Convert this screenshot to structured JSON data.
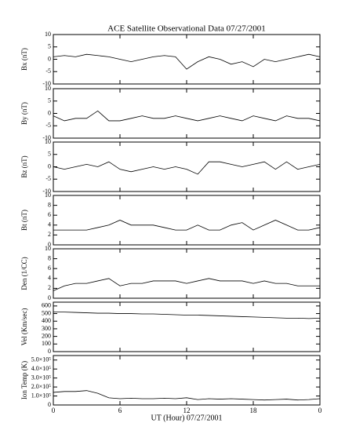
{
  "chart_data": [
    {
      "type": "line",
      "title": "ACE Satellite Observational Data  07/27/2001",
      "ylabel": "Bx (nT)",
      "color": "#000000",
      "ylim": [
        -10,
        10
      ],
      "yticks": [
        -10,
        -5,
        0,
        5,
        10
      ],
      "x": [
        0,
        1,
        2,
        3,
        4,
        5,
        6,
        7,
        8,
        9,
        10,
        11,
        12,
        13,
        14,
        15,
        16,
        17,
        18,
        19,
        20,
        21,
        22,
        23,
        24
      ],
      "values": [
        1,
        1.5,
        1,
        2,
        1.5,
        1,
        0,
        -1,
        0,
        1,
        1.5,
        1,
        -4,
        -1,
        1,
        0,
        -2,
        -1,
        -3,
        0,
        -1,
        0,
        1,
        2,
        1
      ]
    },
    {
      "type": "line",
      "ylabel": "By (nT)",
      "color": "#000000",
      "ylim": [
        -10,
        10
      ],
      "yticks": [
        -10,
        -5,
        0,
        5,
        10
      ],
      "x": [
        0,
        1,
        2,
        3,
        4,
        5,
        6,
        7,
        8,
        9,
        10,
        11,
        12,
        13,
        14,
        15,
        16,
        17,
        18,
        19,
        20,
        21,
        22,
        23,
        24
      ],
      "values": [
        -1,
        -3,
        -2,
        -2,
        1,
        -3,
        -3,
        -2,
        -1,
        -2,
        -2,
        -1,
        -2,
        -3,
        -2,
        -1,
        -2,
        -3,
        -1,
        -2,
        -3,
        -1,
        -2,
        -2,
        -3
      ]
    },
    {
      "type": "line",
      "ylabel": "Bz (nT)",
      "color": "#000000",
      "ylim": [
        -10,
        10
      ],
      "yticks": [
        -10,
        -5,
        0,
        5,
        10
      ],
      "x": [
        0,
        1,
        2,
        3,
        4,
        5,
        6,
        7,
        8,
        9,
        10,
        11,
        12,
        13,
        14,
        15,
        16,
        17,
        18,
        19,
        20,
        21,
        22,
        23,
        24
      ],
      "values": [
        0,
        -1,
        0,
        1,
        0,
        2,
        -1,
        -2,
        -1,
        0,
        -1,
        0,
        -1,
        -3,
        2,
        2,
        1,
        0,
        1,
        2,
        -1,
        2,
        -1,
        0,
        1
      ]
    },
    {
      "type": "line",
      "ylabel": "Bt (nT)",
      "color": "#000000",
      "ylim": [
        0,
        10
      ],
      "yticks": [
        0,
        2,
        4,
        6,
        8,
        10
      ],
      "x": [
        0,
        1,
        2,
        3,
        4,
        5,
        6,
        7,
        8,
        9,
        10,
        11,
        12,
        13,
        14,
        15,
        16,
        17,
        18,
        19,
        20,
        21,
        22,
        23,
        24
      ],
      "values": [
        3,
        3,
        3,
        3,
        3.5,
        4,
        5,
        4,
        4,
        4,
        3.5,
        3,
        3,
        4,
        3,
        3,
        4,
        4.5,
        3,
        4,
        5,
        4,
        3,
        3,
        3.5
      ]
    },
    {
      "type": "line",
      "ylabel": "Den (1/CC)",
      "color": "#000000",
      "ylim": [
        0,
        10
      ],
      "yticks": [
        0,
        2,
        4,
        6,
        8,
        10
      ],
      "x": [
        0,
        1,
        2,
        3,
        4,
        5,
        6,
        7,
        8,
        9,
        10,
        11,
        12,
        13,
        14,
        15,
        16,
        17,
        18,
        19,
        20,
        21,
        22,
        23,
        24
      ],
      "values": [
        1.5,
        2.5,
        3,
        3,
        3.5,
        4,
        2.5,
        3,
        3,
        3.5,
        3.5,
        3.5,
        3,
        3.5,
        4,
        3.5,
        3.5,
        3.5,
        3,
        3.5,
        3,
        3,
        2.5,
        2.5,
        2.5
      ]
    },
    {
      "type": "line",
      "ylabel": "Vel (Km/sec)",
      "color": "#000000",
      "ylim": [
        0,
        650
      ],
      "yticks": [
        0,
        100,
        200,
        300,
        400,
        500,
        600
      ],
      "x": [
        0,
        1,
        2,
        3,
        4,
        5,
        6,
        7,
        8,
        9,
        10,
        11,
        12,
        13,
        14,
        15,
        16,
        17,
        18,
        19,
        20,
        21,
        22,
        23,
        24
      ],
      "values": [
        520,
        520,
        515,
        510,
        505,
        505,
        500,
        500,
        495,
        495,
        490,
        485,
        480,
        480,
        475,
        470,
        465,
        460,
        455,
        450,
        445,
        440,
        440,
        435,
        440
      ]
    },
    {
      "type": "line",
      "ylabel": "Ion Temp (K)",
      "xlabel": "UT (Hour)  07/27/2001",
      "color": "#000000",
      "ylim": [
        0,
        550000
      ],
      "yticks": [
        0,
        {
          "value": 100000,
          "label": "1.0×10⁵"
        },
        {
          "value": 200000,
          "label": "2.0×10⁵"
        },
        {
          "value": 300000,
          "label": "3.0×10⁵"
        },
        {
          "value": 400000,
          "label": "4.0×10⁵"
        },
        {
          "value": 500000,
          "label": "5.0×10⁵"
        }
      ],
      "xlim": [
        0,
        24
      ],
      "xticks": [
        0,
        6,
        12,
        18,
        {
          "value": 24,
          "label": "0"
        }
      ],
      "x": [
        0,
        1,
        2,
        3,
        4,
        5,
        6,
        7,
        8,
        9,
        10,
        11,
        12,
        13,
        14,
        15,
        16,
        17,
        18,
        19,
        20,
        21,
        22,
        23,
        24
      ],
      "values": [
        140000,
        150000,
        150000,
        160000,
        130000,
        80000,
        70000,
        75000,
        70000,
        70000,
        75000,
        70000,
        80000,
        60000,
        70000,
        65000,
        70000,
        65000,
        60000,
        55000,
        60000,
        65000,
        55000,
        60000,
        70000
      ]
    }
  ]
}
